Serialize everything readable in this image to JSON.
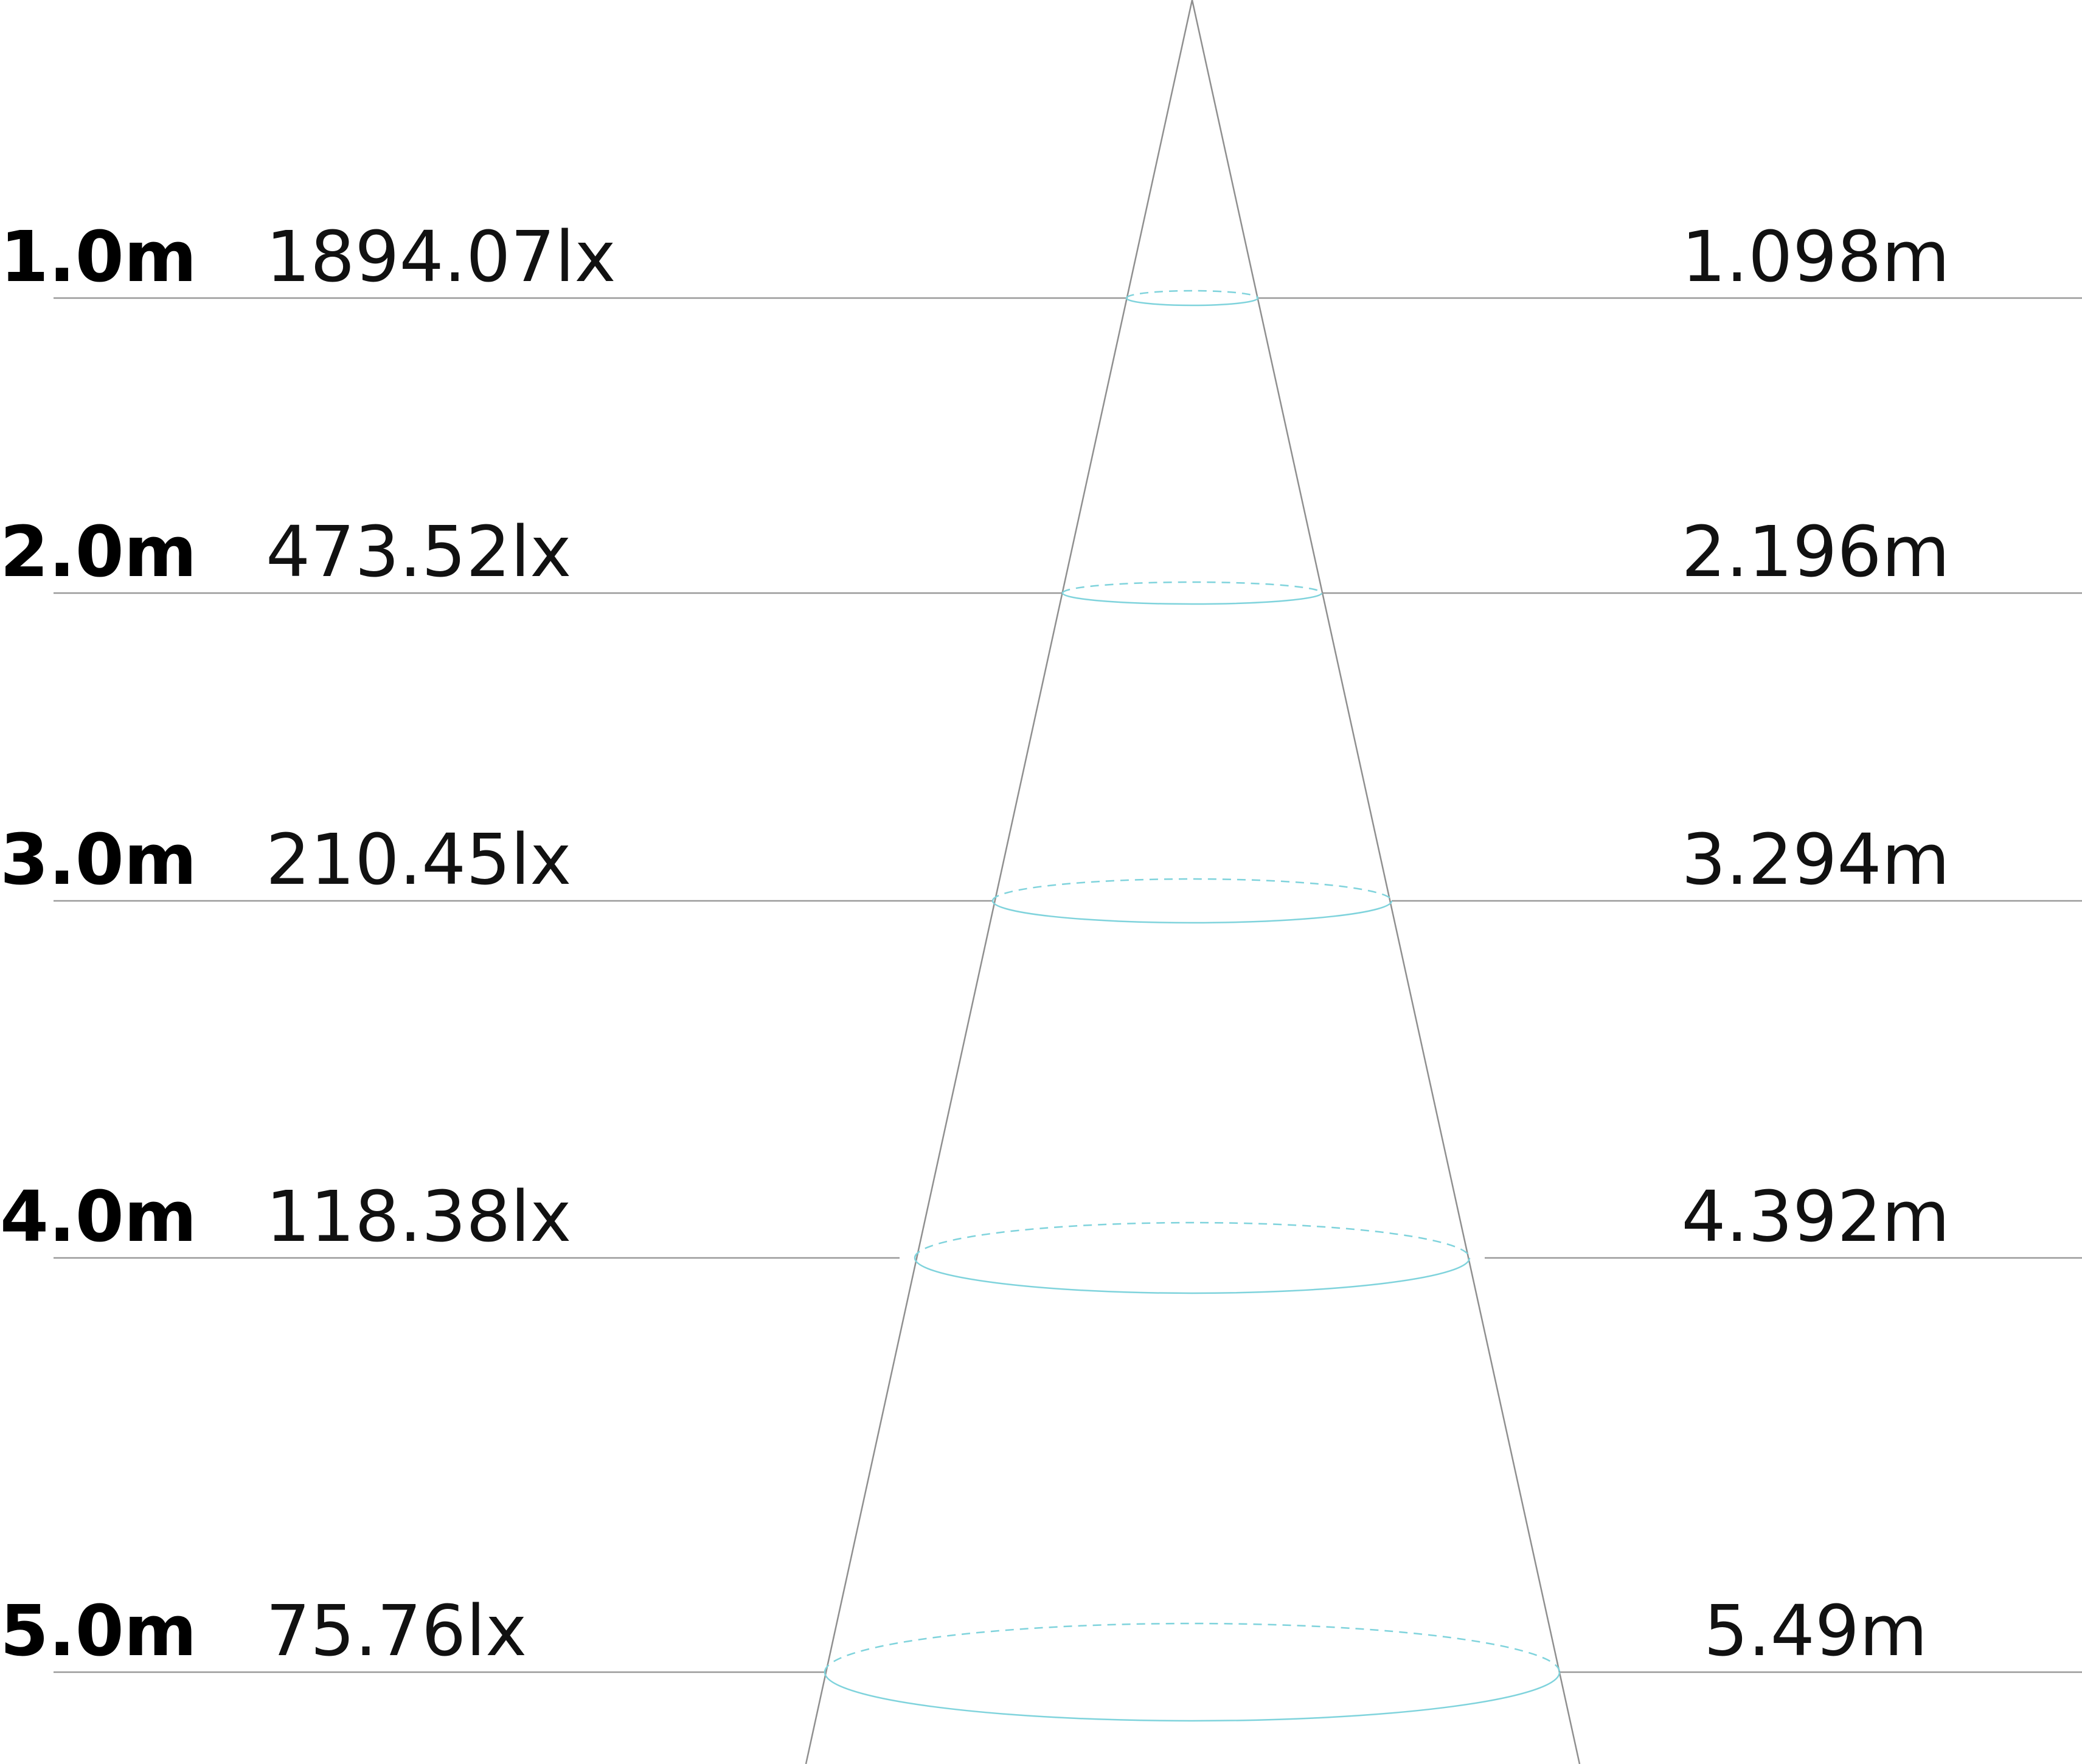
{
  "colors": {
    "beam": "#7fd3dc",
    "lines": "#9a9a9a",
    "text": "#000000"
  },
  "levels": [
    {
      "distance": "1.0m",
      "illuminance": "1894.07lx",
      "diameter": "1.098m"
    },
    {
      "distance": "2.0m",
      "illuminance": "473.52lx",
      "diameter": "2.196m"
    },
    {
      "distance": "3.0m",
      "illuminance": "210.45lx",
      "diameter": "3.294m"
    },
    {
      "distance": "4.0m",
      "illuminance": "118.38lx",
      "diameter": "4.392m"
    },
    {
      "distance": "5.0m",
      "illuminance": "75.76lx",
      "diameter": "5.49m"
    }
  ]
}
